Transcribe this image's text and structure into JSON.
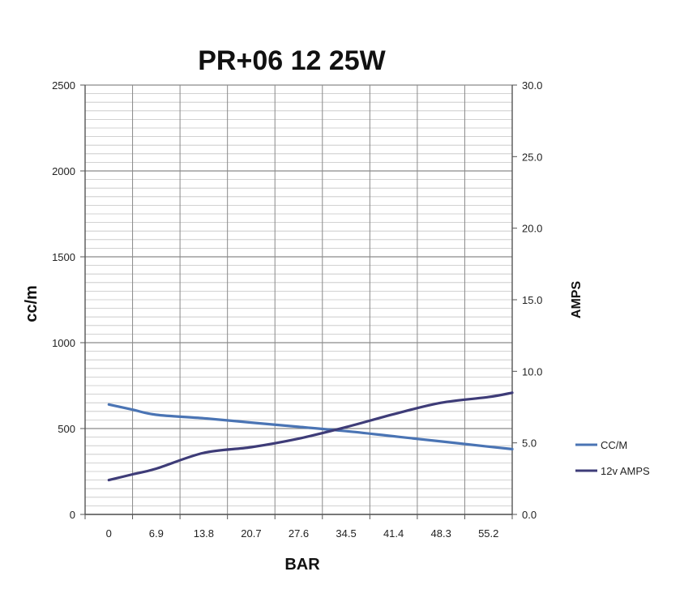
{
  "chart_data": {
    "type": "line",
    "title": "PR+06 12 25W",
    "xlabel": "BAR",
    "ylabel": "cc/m",
    "y2label": "AMPS",
    "categories": [
      "0",
      "6.9",
      "13.8",
      "20.7",
      "27.6",
      "34.5",
      "41.4",
      "48.3",
      "55.2"
    ],
    "x_ticks": [
      "0",
      "6.9",
      "13.8",
      "20.7",
      "27.6",
      "34.5",
      "41.4",
      "48.3",
      "55.2"
    ],
    "y_ticks": [
      "0",
      "500",
      "1000",
      "1500",
      "2000",
      "2500"
    ],
    "y2_ticks": [
      "0.0",
      "5.0",
      "10.0",
      "15.0",
      "20.0",
      "25.0",
      "30.0"
    ],
    "ylim": [
      0,
      2500
    ],
    "y2lim": [
      0,
      30
    ],
    "grid": true,
    "legend_position": "right",
    "series": [
      {
        "name": "CC/M",
        "axis": "left",
        "color": "#4a74b4",
        "x": [
          0,
          3.45,
          6.9,
          13.8,
          20.7,
          27.6,
          34.5,
          41.4,
          48.3,
          55.2,
          58.65
        ],
        "values": [
          640,
          610,
          580,
          560,
          535,
          510,
          485,
          455,
          425,
          395,
          380
        ]
      },
      {
        "name": "12v AMPS",
        "axis": "right",
        "color": "#3e3c78",
        "x": [
          0,
          3.45,
          6.9,
          13.8,
          20.7,
          27.6,
          34.5,
          41.4,
          48.3,
          55.2,
          58.65
        ],
        "values": [
          2.4,
          2.8,
          3.2,
          4.3,
          4.7,
          5.3,
          6.1,
          7.0,
          7.8,
          8.2,
          8.5
        ]
      }
    ]
  }
}
